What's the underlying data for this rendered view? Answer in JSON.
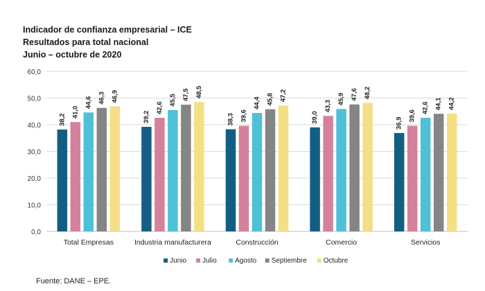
{
  "title_lines": [
    "Indicador de confianza empresarial – ICE",
    "Resultados para total nacional",
    "Junio – octubre de 2020"
  ],
  "source": "Fuente: DANE – EPE.",
  "colors": {
    "Junio": "#135f84",
    "Julio": "#d4829c",
    "Agosto": "#4fc1d7",
    "Septiembre": "#858585",
    "Octubre": "#f5df85",
    "grid": "#d9d9d9",
    "axis": "#bfbfbf"
  },
  "chart_data": {
    "type": "bar",
    "title": "Indicador de confianza empresarial – ICE",
    "subtitle": "Resultados para total nacional, Junio – octubre de 2020",
    "xlabel": "",
    "ylabel": "",
    "ylim": [
      0,
      60
    ],
    "yticks": [
      "0,0",
      "10,0",
      "20,0",
      "30,0",
      "40,0",
      "50,0",
      "60,0"
    ],
    "ytick_values": [
      0,
      10,
      20,
      30,
      40,
      50,
      60
    ],
    "grid": true,
    "legend_position": "bottom",
    "categories": [
      "Total Empresas",
      "Industria manufacturera",
      "Construcción",
      "Comercio",
      "Servicios"
    ],
    "series": [
      {
        "name": "Junio",
        "values": [
          38.2,
          39.2,
          38.3,
          39.0,
          36.9
        ],
        "labels": [
          "38,2",
          "39,2",
          "38,3",
          "39,0",
          "36,9"
        ]
      },
      {
        "name": "Julio",
        "values": [
          41.0,
          42.6,
          39.6,
          43.3,
          39.6
        ],
        "labels": [
          "41,0",
          "42,6",
          "39,6",
          "43,3",
          "39,6"
        ]
      },
      {
        "name": "Agosto",
        "values": [
          44.6,
          45.5,
          44.4,
          45.9,
          42.6
        ],
        "labels": [
          "44,6",
          "45,5",
          "44,4",
          "45,9",
          "42,6"
        ]
      },
      {
        "name": "Septiembre",
        "values": [
          46.3,
          47.5,
          45.8,
          47.6,
          44.1
        ],
        "labels": [
          "46,3",
          "47,5",
          "45,8",
          "47,6",
          "44,1"
        ]
      },
      {
        "name": "Octubre",
        "values": [
          46.9,
          48.5,
          47.2,
          48.2,
          44.2
        ],
        "labels": [
          "46,9",
          "48,5",
          "47,2",
          "48,2",
          "44,2"
        ]
      }
    ]
  }
}
